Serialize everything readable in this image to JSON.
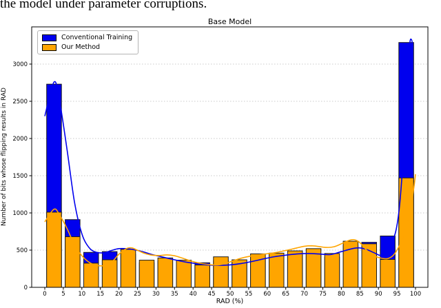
{
  "caption": "the model under parameter corruptions.",
  "chart_data": {
    "type": "bar",
    "subtype": "overlaid-histogram-with-kde",
    "title": "Base Model",
    "xlabel": "RAD (%)",
    "ylabel": "Number of bits whose flipping results in RAD",
    "bin_width": 5,
    "bin_starts": [
      0,
      5,
      10,
      15,
      20,
      25,
      30,
      35,
      40,
      45,
      50,
      55,
      60,
      65,
      70,
      75,
      80,
      85,
      90,
      95
    ],
    "series": [
      {
        "name": "Conventional Training",
        "color": "#0000ee",
        "values": [
          2730,
          910,
          470,
          480,
          445,
          330,
          350,
          335,
          330,
          360,
          330,
          400,
          415,
          435,
          450,
          405,
          560,
          605,
          690,
          3290
        ]
      },
      {
        "name": "Our Method",
        "color": "#ffa500",
        "values": [
          1010,
          680,
          325,
          370,
          510,
          365,
          395,
          365,
          300,
          410,
          370,
          450,
          460,
          490,
          520,
          455,
          620,
          585,
          375,
          1470
        ]
      }
    ],
    "kde_curves": {
      "conventional": [
        [
          0,
          2300
        ],
        [
          2.5,
          2760
        ],
        [
          4,
          2500
        ],
        [
          6,
          1850
        ],
        [
          8,
          1150
        ],
        [
          10,
          720
        ],
        [
          12,
          530
        ],
        [
          14,
          470
        ],
        [
          16,
          465
        ],
        [
          18,
          495
        ],
        [
          20,
          520
        ],
        [
          23,
          515
        ],
        [
          26,
          485
        ],
        [
          29,
          440
        ],
        [
          32,
          405
        ],
        [
          35,
          370
        ],
        [
          38,
          340
        ],
        [
          41,
          318
        ],
        [
          44,
          300
        ],
        [
          47,
          295
        ],
        [
          50,
          302
        ],
        [
          53,
          320
        ],
        [
          56,
          348
        ],
        [
          59,
          382
        ],
        [
          62,
          412
        ],
        [
          65,
          432
        ],
        [
          68,
          448
        ],
        [
          71,
          455
        ],
        [
          74,
          448
        ],
        [
          77,
          440
        ],
        [
          80,
          480
        ],
        [
          83,
          520
        ],
        [
          85,
          530
        ],
        [
          87,
          505
        ],
        [
          89,
          460
        ],
        [
          90.5,
          430
        ],
        [
          92,
          455
        ],
        [
          93.5,
          580
        ],
        [
          94.8,
          780
        ],
        [
          95.8,
          1150
        ],
        [
          96.8,
          1850
        ],
        [
          97.6,
          2650
        ],
        [
          98.4,
          3250
        ],
        [
          98.9,
          3330
        ],
        [
          99.3,
          3230
        ]
      ],
      "our_method": [
        [
          0,
          880
        ],
        [
          2.5,
          1050
        ],
        [
          4,
          970
        ],
        [
          6,
          790
        ],
        [
          8,
          570
        ],
        [
          10,
          425
        ],
        [
          12,
          335
        ],
        [
          14,
          295
        ],
        [
          16,
          292
        ],
        [
          18,
          335
        ],
        [
          20,
          445
        ],
        [
          22,
          520
        ],
        [
          23.5,
          530
        ],
        [
          25,
          498
        ],
        [
          27,
          455
        ],
        [
          29,
          432
        ],
        [
          31,
          428
        ],
        [
          33,
          436
        ],
        [
          35,
          424
        ],
        [
          37,
          394
        ],
        [
          40,
          345
        ],
        [
          43,
          315
        ],
        [
          46,
          300
        ],
        [
          48,
          312
        ],
        [
          50,
          342
        ],
        [
          53,
          392
        ],
        [
          56,
          424
        ],
        [
          59,
          445
        ],
        [
          62,
          465
        ],
        [
          65,
          495
        ],
        [
          68,
          530
        ],
        [
          70,
          552
        ],
        [
          72,
          558
        ],
        [
          74,
          548
        ],
        [
          76,
          536
        ],
        [
          78,
          545
        ],
        [
          80,
          585
        ],
        [
          82,
          630
        ],
        [
          83.5,
          640
        ],
        [
          85,
          600
        ],
        [
          87,
          490
        ],
        [
          89,
          420
        ],
        [
          91,
          390
        ],
        [
          92.5,
          386
        ],
        [
          94,
          430
        ],
        [
          95.5,
          545
        ],
        [
          97,
          730
        ],
        [
          98.5,
          1010
        ],
        [
          99.5,
          1320
        ],
        [
          100,
          1520
        ]
      ]
    },
    "x_ticks": [
      0,
      5,
      10,
      15,
      20,
      25,
      30,
      35,
      40,
      45,
      50,
      55,
      60,
      65,
      70,
      75,
      80,
      85,
      90,
      95,
      100
    ],
    "y_ticks": [
      0,
      500,
      1000,
      1500,
      2000,
      2500,
      3000
    ],
    "xlim": [
      -3.5,
      103.5
    ],
    "ylim": [
      0,
      3500
    ],
    "grid": "horizontal-dashed",
    "grid_color": "#c9c9c9",
    "bar_edge_color": "#1c1c1c",
    "legend_position": "upper-left"
  }
}
